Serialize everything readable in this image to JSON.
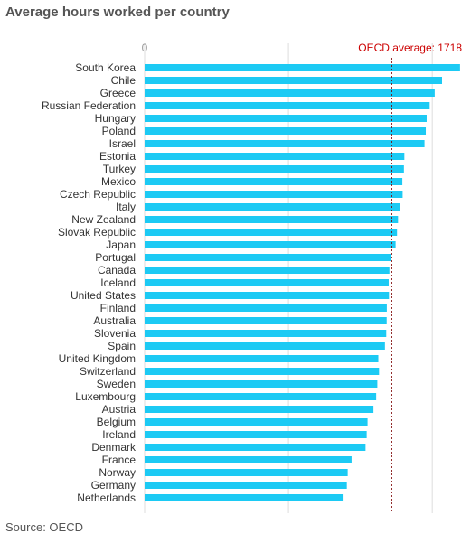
{
  "title": "Average hours worked per country",
  "source": "Source: OECD",
  "chart_data": {
    "type": "bar",
    "orientation": "horizontal",
    "title": "Average hours worked per country",
    "categories": [
      "South Korea",
      "Chile",
      "Greece",
      "Russian Federation",
      "Hungary",
      "Poland",
      "Israel",
      "Estonia",
      "Turkey",
      "Mexico",
      "Czech Republic",
      "Italy",
      "New Zealand",
      "Slovak Republic",
      "Japan",
      "Portugal",
      "Canada",
      "Iceland",
      "United States",
      "Finland",
      "Australia",
      "Slovenia",
      "Spain",
      "United Kingdom",
      "Switzerland",
      "Sweden",
      "Luxembourg",
      "Austria",
      "Belgium",
      "Ireland",
      "Denmark",
      "France",
      "Norway",
      "Germany",
      "Netherlands"
    ],
    "values": [
      2193,
      2068,
      2017,
      1982,
      1961,
      1955,
      1946,
      1806,
      1803,
      1792,
      1794,
      1774,
      1762,
      1755,
      1745,
      1711,
      1702,
      1697,
      1699,
      1684,
      1683,
      1680,
      1671,
      1625,
      1630,
      1618,
      1610,
      1591,
      1550,
      1544,
      1536,
      1439,
      1412,
      1406,
      1377
    ],
    "xlim": [
      0,
      2200
    ],
    "x_ticks": [
      "0"
    ],
    "reference_line": {
      "label": "OECD average: 1718",
      "value": 1718
    },
    "colors": {
      "bar": "#1ccaf4",
      "reference_line": "#7a0000",
      "reference_label": "#cc0000",
      "grid": "#dddddd"
    },
    "grid": true
  }
}
